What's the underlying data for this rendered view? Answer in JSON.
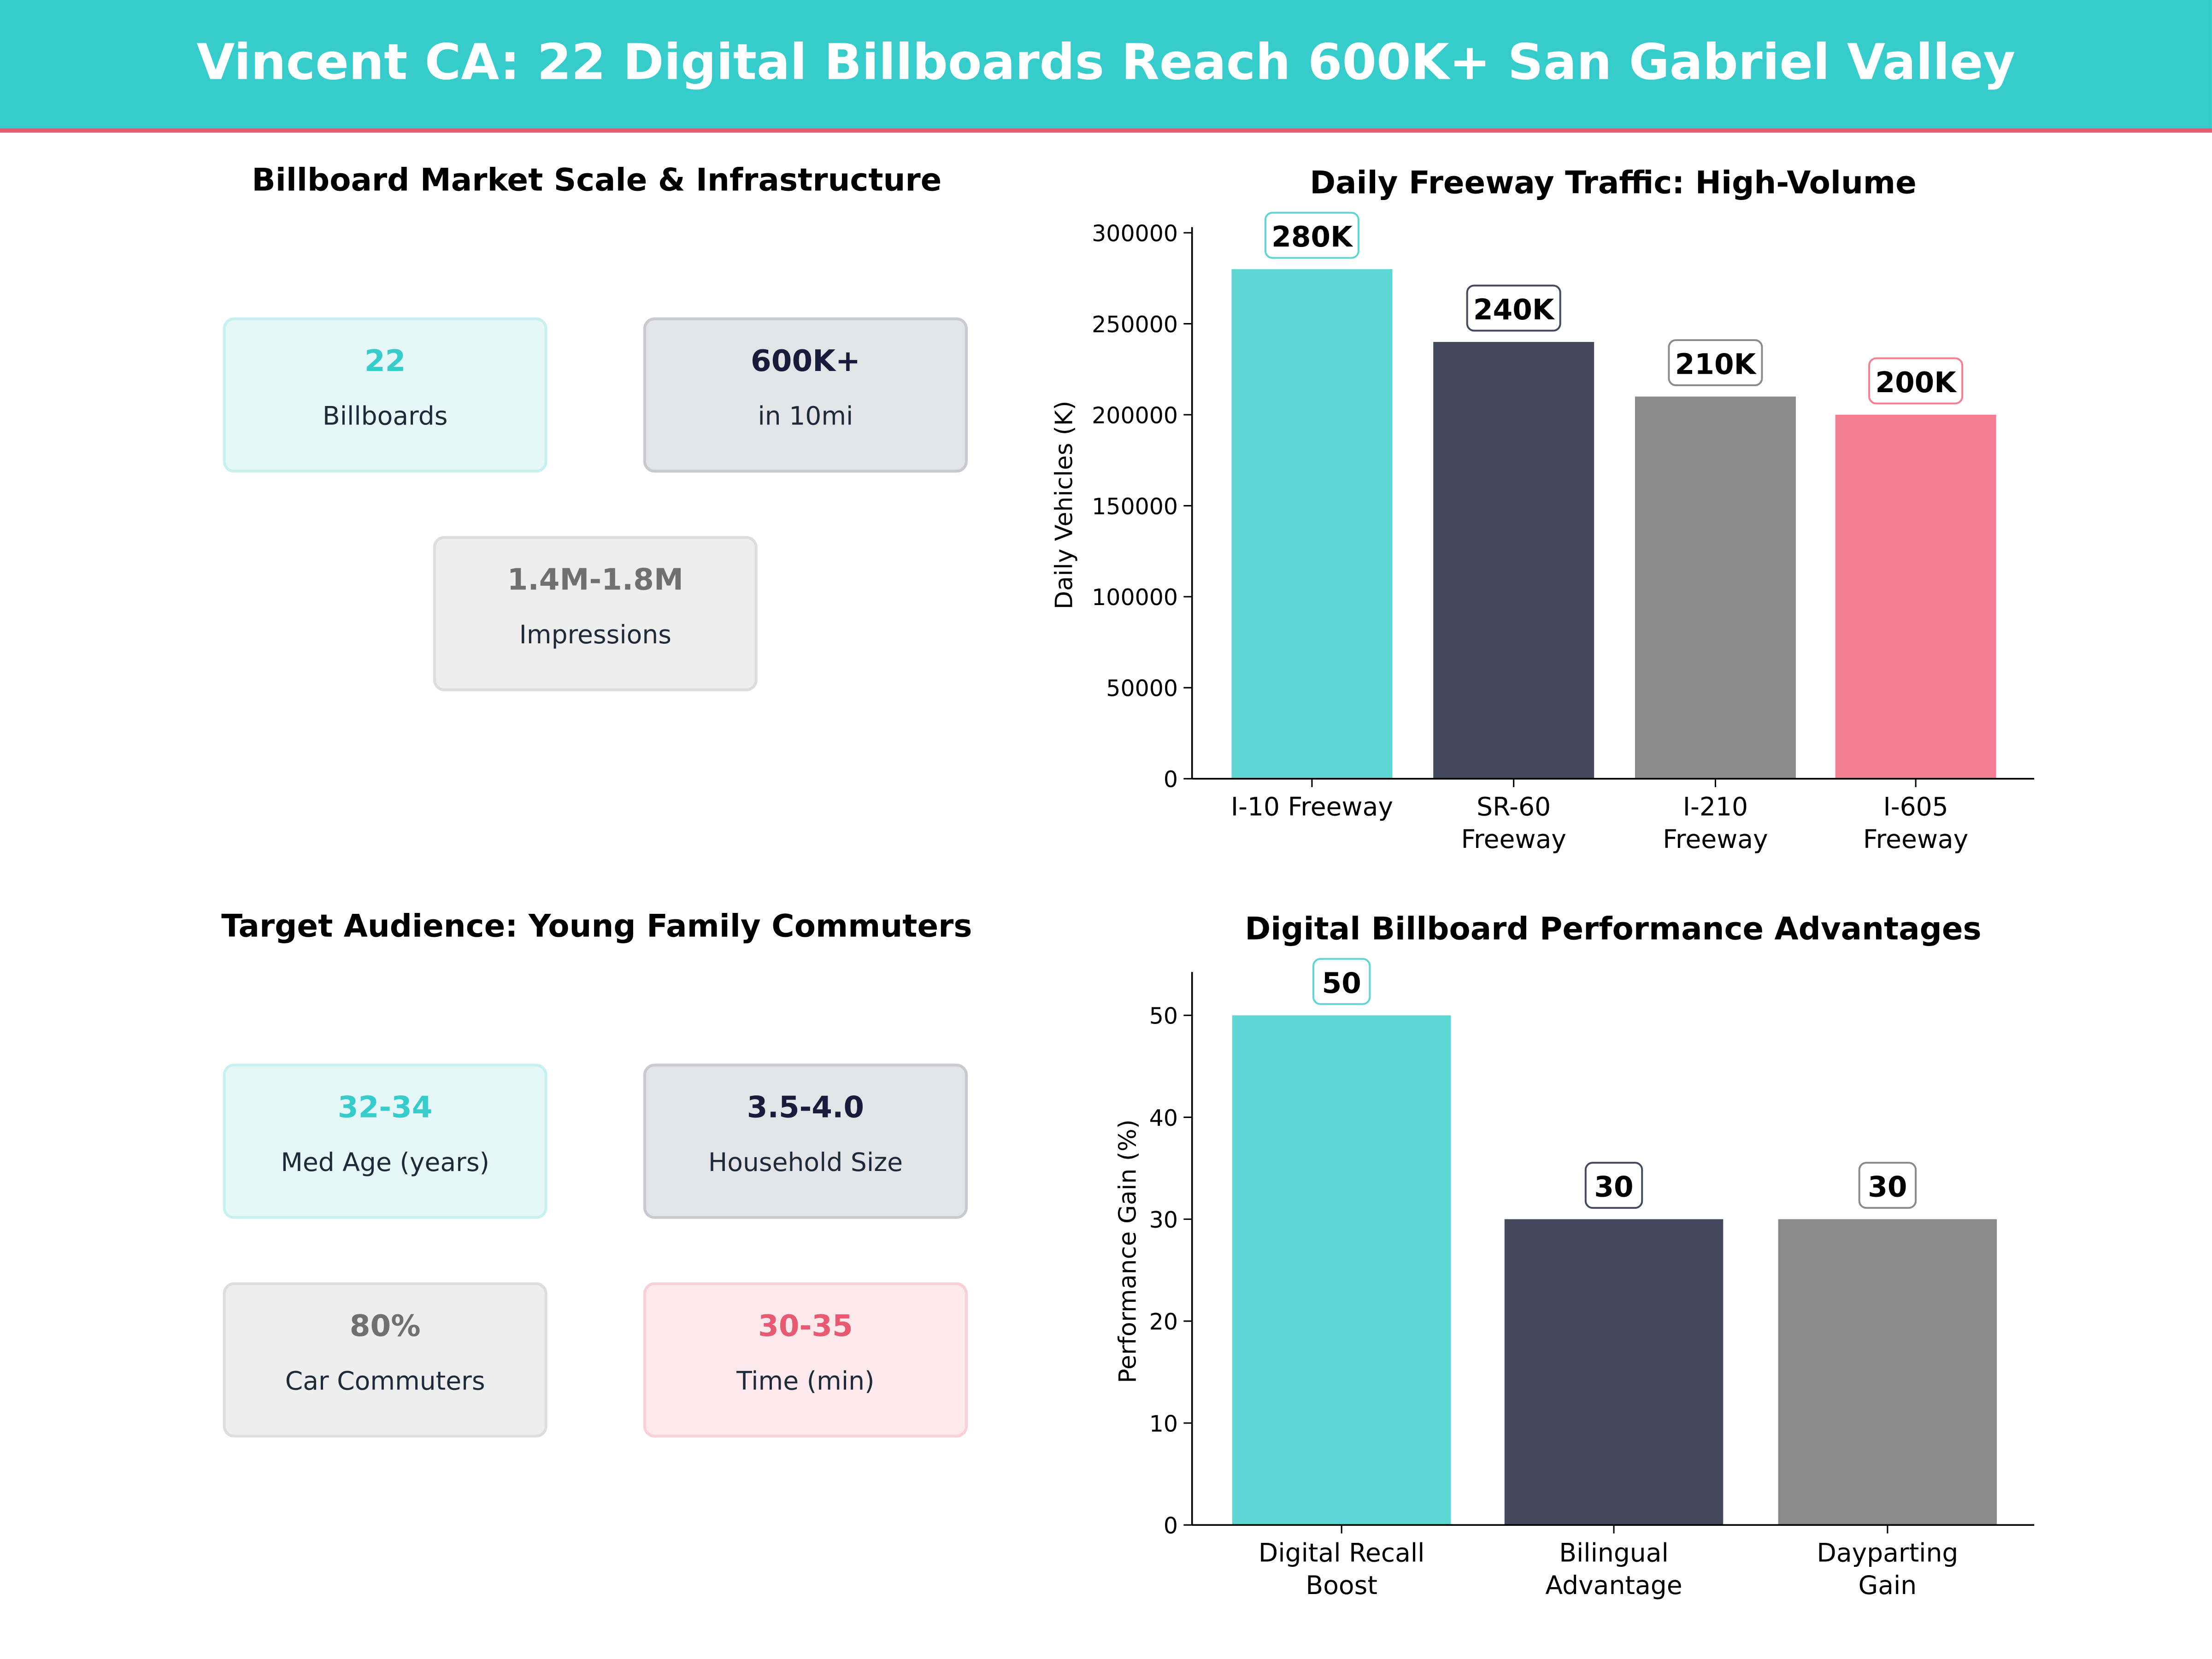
{
  "header": {
    "title": "Vincent CA: 22 Digital Billboards Reach 600K+ San Gabriel Valley"
  },
  "colors": {
    "teal": "#36CCCC",
    "dark": "#44495E",
    "gray": "#8A8A8A",
    "pink": "#F47E92",
    "accent_line": "#E85A71"
  },
  "market": {
    "title": "Billboard Market Scale & Infrastructure",
    "cards": [
      {
        "value": "22",
        "label": "Billboards"
      },
      {
        "value": "600K+",
        "label": "in 10mi"
      },
      {
        "value": "1.4M-1.8M",
        "label": "Impressions"
      }
    ]
  },
  "audience": {
    "title": "Target Audience: Young Family Commuters",
    "cards": [
      {
        "value": "32-34",
        "label": "Med Age (years)"
      },
      {
        "value": "3.5-4.0",
        "label": "Household Size"
      },
      {
        "value": "80%",
        "label": "Car Commuters"
      },
      {
        "value": "30-35",
        "label": "Time (min)"
      }
    ]
  },
  "chart_data": [
    {
      "type": "bar",
      "title": "Daily Freeway Traffic: High-Volume",
      "xlabel": "",
      "ylabel": "Daily Vehicles (K)",
      "categories": [
        "I-10 Freeway",
        "SR-60 Freeway",
        "I-210 Freeway",
        "I-605 Freeway"
      ],
      "values": [
        280000,
        240000,
        210000,
        200000
      ],
      "data_labels": [
        "280K",
        "240K",
        "210K",
        "200K"
      ],
      "colors": [
        "#5DD6D4",
        "#44495E",
        "#8A8A8A",
        "#F47E92"
      ],
      "yticks": [
        0,
        50000,
        100000,
        150000,
        200000,
        250000,
        300000
      ],
      "ylim": [
        0,
        300000
      ],
      "grid": false
    },
    {
      "type": "bar",
      "title": "Digital Billboard Performance Advantages",
      "xlabel": "",
      "ylabel": "Performance Gain (%)",
      "categories": [
        "Digital Recall Boost",
        "Bilingual Advantage",
        "Dayparting Gain"
      ],
      "values": [
        50,
        30,
        30
      ],
      "data_labels": [
        "50",
        "30",
        "30"
      ],
      "colors": [
        "#5DD6D4",
        "#44495E",
        "#8A8A8A"
      ],
      "yticks": [
        0,
        10,
        20,
        30,
        40,
        50
      ],
      "ylim": [
        0,
        53.7
      ],
      "grid": false
    }
  ]
}
